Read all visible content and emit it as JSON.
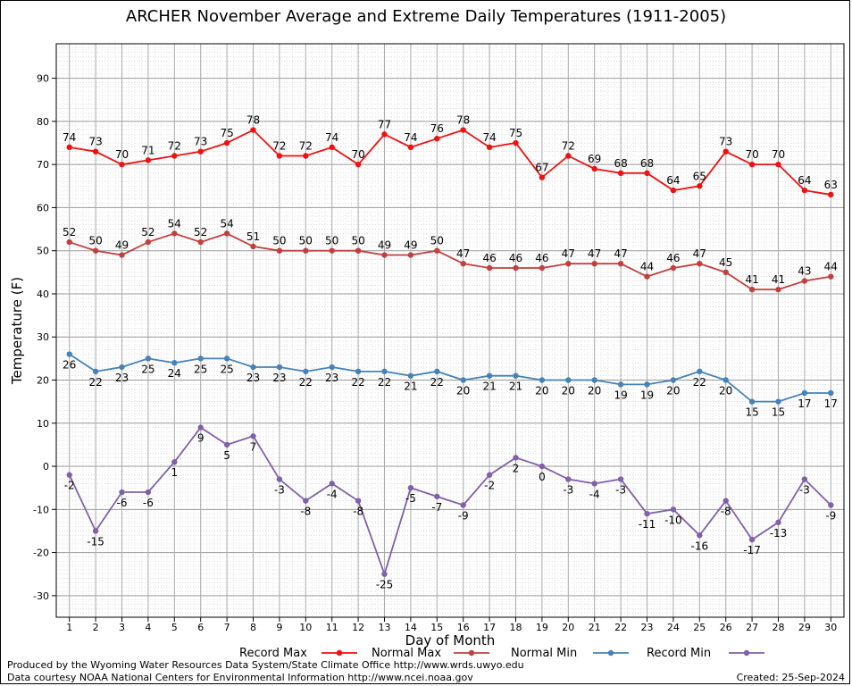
{
  "chart_data": {
    "type": "line",
    "title": "ARCHER November Average and Extreme Daily Temperatures (1911-2005)",
    "xlabel": "Day of Month",
    "ylabel": "Temperature (F)",
    "x": [
      1,
      2,
      3,
      4,
      5,
      6,
      7,
      8,
      9,
      10,
      11,
      12,
      13,
      14,
      15,
      16,
      17,
      18,
      19,
      20,
      21,
      22,
      23,
      24,
      25,
      26,
      27,
      28,
      29,
      30
    ],
    "xlim": [
      0.5,
      30.5
    ],
    "ylim": [
      -35,
      98
    ],
    "yticks": [
      -30,
      -20,
      -10,
      0,
      10,
      20,
      30,
      40,
      50,
      60,
      70,
      80,
      90
    ],
    "grid": "on",
    "legend_position": "bottom",
    "series": [
      {
        "name": "Record Max",
        "color": "#ee1111",
        "values": [
          74,
          73,
          70,
          71,
          72,
          73,
          75,
          78,
          72,
          72,
          74,
          70,
          77,
          74,
          76,
          78,
          74,
          75,
          67,
          72,
          69,
          68,
          68,
          64,
          65,
          73,
          70,
          70,
          64,
          63
        ]
      },
      {
        "name": "Normal Max",
        "color": "#c04040",
        "values": [
          52,
          50,
          49,
          52,
          54,
          52,
          54,
          51,
          50,
          50,
          50,
          50,
          49,
          49,
          50,
          47,
          46,
          46,
          46,
          47,
          47,
          47,
          44,
          46,
          47,
          45,
          41,
          41,
          43,
          44
        ]
      },
      {
        "name": "Normal Min",
        "color": "#4682b4",
        "values": [
          26,
          22,
          23,
          25,
          24,
          25,
          25,
          23,
          23,
          22,
          23,
          22,
          22,
          21,
          22,
          20,
          21,
          21,
          20,
          20,
          20,
          19,
          19,
          20,
          22,
          20,
          15,
          15,
          17,
          17
        ]
      },
      {
        "name": "Record Min",
        "color": "#8060a8",
        "values": [
          -2,
          -15,
          -6,
          -6,
          1,
          9,
          5,
          7,
          -3,
          -8,
          -4,
          -8,
          -25,
          -5,
          -7,
          -9,
          -2,
          2,
          0,
          -3,
          -4,
          -3,
          -11,
          -10,
          -16,
          -8,
          -17,
          -13,
          -3,
          -9
        ]
      }
    ]
  },
  "footer": {
    "credit_line_1": "Produced by the Wyoming Water Resources Data System/State Climate Office http://www.wrds.uwyo.edu",
    "credit_line_2": "Data courtesy NOAA National Centers for Environmental Information http://www.ncei.noaa.gov",
    "created": "Created:  25-Sep-2024"
  }
}
